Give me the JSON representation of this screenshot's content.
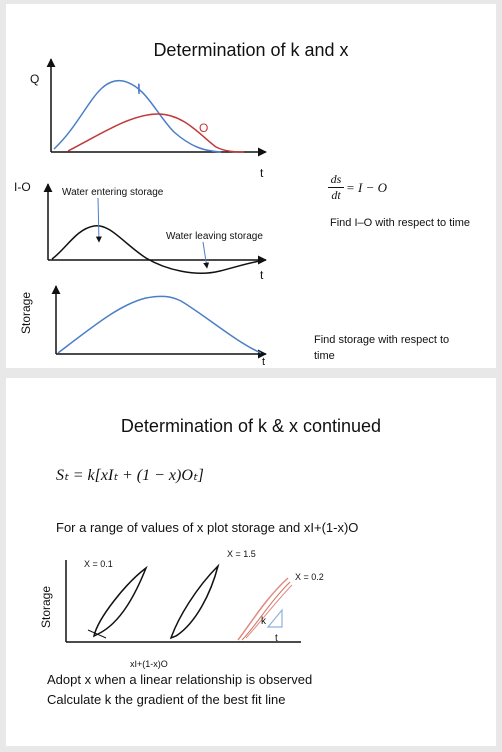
{
  "slide1": {
    "title": "Determination of k and x",
    "graph_q": {
      "ylabel": "Q",
      "xlabel": "t",
      "inflow_label": "I",
      "outflow_label": "O"
    },
    "graph_io": {
      "ylabel": "I-O",
      "xlabel": "t",
      "annotation_entering": "Water entering storage",
      "annotation_leaving": "Water leaving storage"
    },
    "graph_storage": {
      "ylabel": "Storage",
      "xlabel": "t"
    },
    "equation": {
      "numerator": "ds",
      "denominator": "dt",
      "rhs": "= I − O"
    },
    "note_io": "Find I–O with respect to time",
    "note_storage": "Find storage with respect to time"
  },
  "slide2": {
    "title": "Determination of k & x continued",
    "equation": "Sₜ = k[xIₜ + (1 − x)Oₜ]",
    "instruction": "For  a range of values of x  plot storage and xI+(1-x)O",
    "plot": {
      "ylabel": "Storage",
      "xlabel": "xI+(1-x)O",
      "loop_labels": [
        "X = 0.1",
        "X = 1.5",
        "X = 0.2"
      ],
      "triangle_vertical": "k",
      "triangle_horizontal": "t"
    },
    "conclusion_1": "Adopt x when a linear relationship is observed",
    "conclusion_2": "Calculate k the gradient of the best fit line"
  },
  "colors": {
    "inflow": "#4a7fc8",
    "outflow": "#c0393b",
    "line": "#111111",
    "loop_red": "#e08a80"
  }
}
